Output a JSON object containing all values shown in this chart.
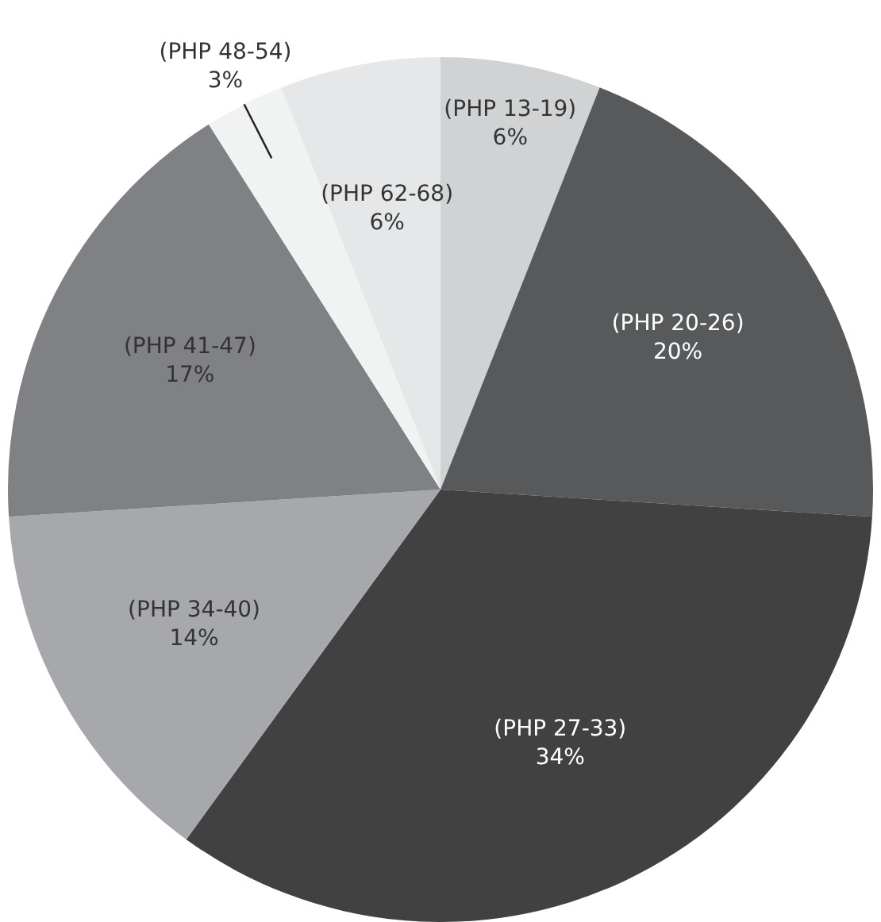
{
  "chart_data": {
    "type": "pie",
    "categories": [
      "(PHP 13-19)",
      "(PHP 20-26)",
      "(PHP 27-33)",
      "(PHP 34-40)",
      "(PHP 41-47)",
      "(PHP 48-54)",
      "(PHP 62-68)"
    ],
    "values": [
      6,
      20,
      34,
      14,
      17,
      3,
      6
    ],
    "value_labels": [
      "6%",
      "20%",
      "34%",
      "14%",
      "17%",
      "3%",
      "6%"
    ],
    "colors": [
      "#d1d2d4",
      "#58595b",
      "#414141",
      "#a7a8ab",
      "#808184",
      "#f1f2f2",
      "#e6e7e8"
    ],
    "legend": false
  }
}
